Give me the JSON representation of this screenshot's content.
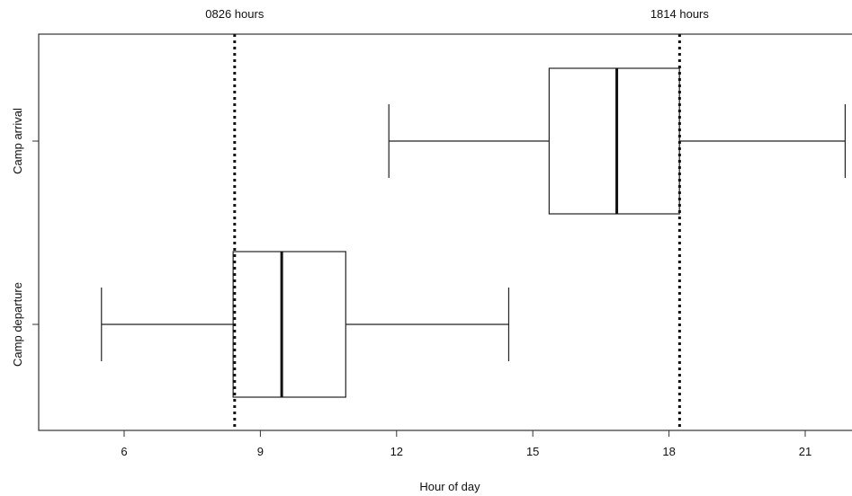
{
  "chart_data": {
    "type": "box",
    "orientation": "horizontal",
    "title": "",
    "xlabel": "Hour of day",
    "ylabel": "",
    "xlim": [
      4.8,
      21.9
    ],
    "x_ticks": [
      6,
      9,
      12,
      15,
      18,
      21
    ],
    "grid": false,
    "categories": [
      "Camp departure",
      "Camp arrival"
    ],
    "boxes": [
      {
        "label": "Camp departure",
        "whisker_low": 5.5,
        "q1": 8.4,
        "median": 9.47,
        "q3": 10.88,
        "whisker_high": 14.47
      },
      {
        "label": "Camp arrival",
        "whisker_low": 11.83,
        "q1": 15.36,
        "median": 16.85,
        "q3": 18.23,
        "whisker_high": 21.88
      }
    ],
    "reference_lines": [
      {
        "label": "0826 hours",
        "x": 8.4333,
        "style": "dotted"
      },
      {
        "label": "1814 hours",
        "x": 18.2333,
        "style": "dotted"
      }
    ]
  }
}
